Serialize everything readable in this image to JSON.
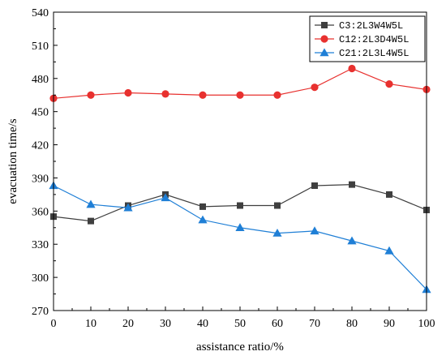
{
  "chart_data": {
    "type": "line",
    "title": "",
    "xlabel": "assistance ratio/%",
    "ylabel": "evacuation time/s",
    "x": [
      0,
      10,
      20,
      30,
      40,
      50,
      60,
      70,
      80,
      90,
      100
    ],
    "xlim": [
      0,
      100
    ],
    "ylim": [
      270,
      540
    ],
    "x_ticks": [
      "0",
      "10",
      "20",
      "30",
      "40",
      "50",
      "60",
      "70",
      "80",
      "90",
      "100"
    ],
    "y_ticks": [
      "270",
      "300",
      "330",
      "360",
      "390",
      "420",
      "450",
      "480",
      "510",
      "540"
    ],
    "grid": false,
    "legend_position": "top-right",
    "series": [
      {
        "name": "C3:2L3W4W5L",
        "color": "#3f3f3f",
        "marker": "square",
        "values": [
          355,
          351,
          365,
          375,
          364,
          365,
          365,
          383,
          384,
          375,
          361
        ]
      },
      {
        "name": "C12:2L3D4W5L",
        "color": "#e8312f",
        "marker": "circle",
        "values": [
          462,
          465,
          467,
          466,
          465,
          465,
          465,
          472,
          489,
          475,
          470
        ]
      },
      {
        "name": "C21:2L3L4W5L",
        "color": "#1f7fd6",
        "marker": "triangle",
        "values": [
          383,
          366,
          363,
          372,
          352,
          345,
          340,
          342,
          333,
          324,
          289
        ]
      }
    ]
  }
}
